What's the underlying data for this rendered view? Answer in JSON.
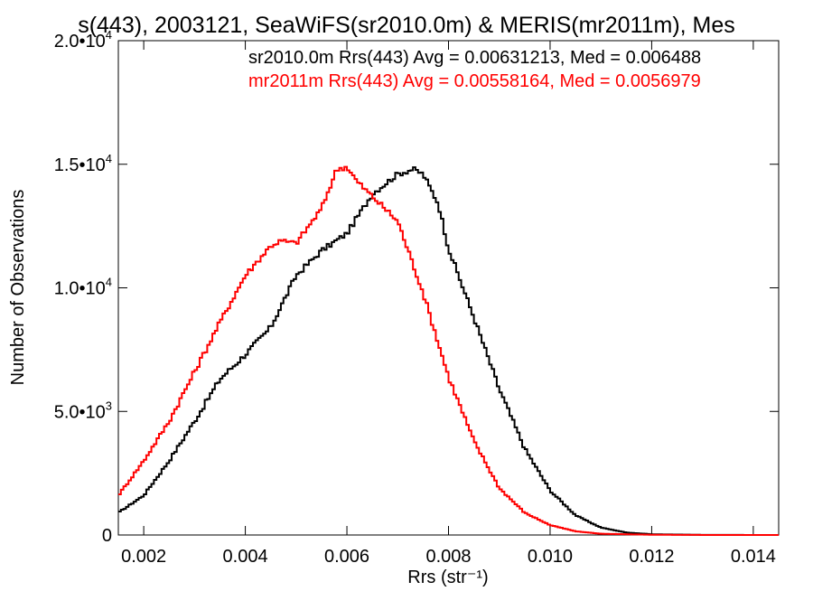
{
  "chart_data": {
    "type": "line",
    "title": "s(443), 2003121, SeaWiFS(sr2010.0m) & MERIS(mr2011m), Mes",
    "xlabel": "Rrs (str⁻¹)",
    "ylabel": "Number of Observations",
    "xlim": [
      0.0015,
      0.0145
    ],
    "ylim": [
      0,
      20000
    ],
    "grid": false,
    "xticks": [
      {
        "value": 0.002,
        "label": "0.002"
      },
      {
        "value": 0.004,
        "label": "0.004"
      },
      {
        "value": 0.006,
        "label": "0.006"
      },
      {
        "value": 0.008,
        "label": "0.008"
      },
      {
        "value": 0.01,
        "label": "0.010"
      },
      {
        "value": 0.012,
        "label": "0.012"
      },
      {
        "value": 0.014,
        "label": "0.014"
      }
    ],
    "yticks": [
      {
        "value": 0,
        "label": "0",
        "base": "0",
        "exp": ""
      },
      {
        "value": 5000,
        "label": "5.0•10^3",
        "base": "5.0•10",
        "exp": "3"
      },
      {
        "value": 10000,
        "label": "1.0•10^4",
        "base": "1.0•10",
        "exp": "4"
      },
      {
        "value": 15000,
        "label": "1.5•10^4",
        "base": "1.5•10",
        "exp": "4"
      },
      {
        "value": 20000,
        "label": "2.0•10^4",
        "base": "2.0•10",
        "exp": "4"
      }
    ],
    "annotations": [
      {
        "text": "sr2010.0m Rrs(443) Avg = 0.00631213, Med = 0.006488",
        "color": "#000000"
      },
      {
        "text": "mr2011m Rrs(443) Avg = 0.00558164, Med = 0.0056979",
        "color": "#ff0000"
      }
    ],
    "series": [
      {
        "color": "#000000",
        "x": [
          0.0015,
          0.002,
          0.0025,
          0.003,
          0.0035,
          0.004,
          0.0045,
          0.005,
          0.0055,
          0.006,
          0.0065,
          0.007,
          0.0073,
          0.0075,
          0.0078,
          0.008,
          0.0085,
          0.009,
          0.0095,
          0.01,
          0.0105,
          0.011,
          0.0115,
          0.012,
          0.013,
          0.0145
        ],
        "y": [
          900,
          1600,
          3000,
          4600,
          6300,
          7300,
          8400,
          10500,
          11500,
          12200,
          13800,
          14600,
          14800,
          14600,
          13400,
          11600,
          8800,
          5900,
          3500,
          1800,
          800,
          300,
          100,
          30,
          5,
          0
        ]
      },
      {
        "color": "#ff0000",
        "x": [
          0.0015,
          0.002,
          0.0025,
          0.003,
          0.0035,
          0.004,
          0.0045,
          0.0047,
          0.005,
          0.0055,
          0.0058,
          0.006,
          0.0062,
          0.0065,
          0.007,
          0.0075,
          0.008,
          0.0085,
          0.009,
          0.0095,
          0.01,
          0.0105,
          0.011,
          0.012,
          0.013,
          0.0145
        ],
        "y": [
          1600,
          3000,
          4600,
          6600,
          8600,
          10500,
          11700,
          11900,
          11800,
          13200,
          14800,
          14900,
          14300,
          13700,
          12700,
          9800,
          6400,
          3800,
          1900,
          900,
          400,
          150,
          50,
          10,
          2,
          0
        ]
      }
    ]
  }
}
